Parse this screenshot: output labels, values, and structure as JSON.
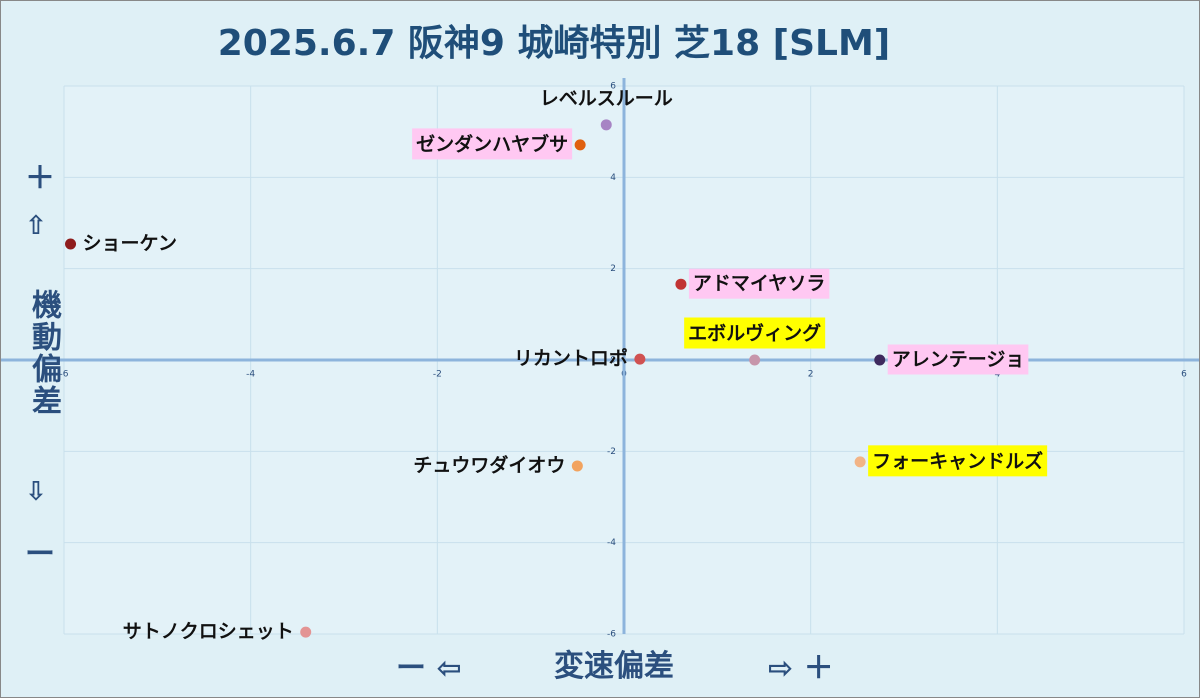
{
  "chart_data": {
    "type": "scatter",
    "title": "2025.6.7 阪神9 城崎特別 芝18 [SLM]",
    "x_label": "変速偏差",
    "y_label": "機動偏差",
    "x_neg_marker": "ー ⇦",
    "x_pos_marker": "⇨ ＋",
    "y_plus": "＋",
    "y_up": "⇧",
    "y_down": "⇩",
    "y_minus": "ー",
    "xlim": [
      -6,
      6
    ],
    "ylim": [
      -6,
      6
    ],
    "xticks": [
      -6,
      -4,
      -2,
      0,
      2,
      4,
      6
    ],
    "yticks": [
      -6,
      -4,
      -2,
      0,
      2,
      4,
      6
    ],
    "grid": true,
    "series": [
      {
        "labels": [
          "レベルスルール",
          "ゼンダンハヤブサ",
          "ショーケン",
          "アドマイヤソラ",
          "エボルヴィング",
          "リカントロポ",
          "アレンテージョ",
          "チュウワダイオウ",
          "フォーキャンドルズ",
          "サトノクロシェット"
        ],
        "x": [
          -0.19,
          -0.47,
          -5.93,
          0.61,
          1.4,
          0.17,
          2.74,
          -0.5,
          2.53,
          -3.41
        ],
        "values": [
          5.15,
          4.71,
          2.54,
          1.66,
          0.0,
          0.02,
          0.0,
          -2.32,
          -2.23,
          -5.96
        ],
        "colors": [
          "#a784c4",
          "#e0600f",
          "#8e1c1c",
          "#c13434",
          "#c796ab",
          "#d05252",
          "#3e2a5e",
          "#f2a35f",
          "#f2b486",
          "#e39494"
        ],
        "label_highlight": [
          "#ffffff00",
          "#ffc8f2",
          "#ffffff00",
          "#ffc8f2",
          "#ffff00",
          "#ffffff00",
          "#ffc8f2",
          "#ffffff00",
          "#ffff00",
          "#ffffff00"
        ]
      }
    ]
  }
}
